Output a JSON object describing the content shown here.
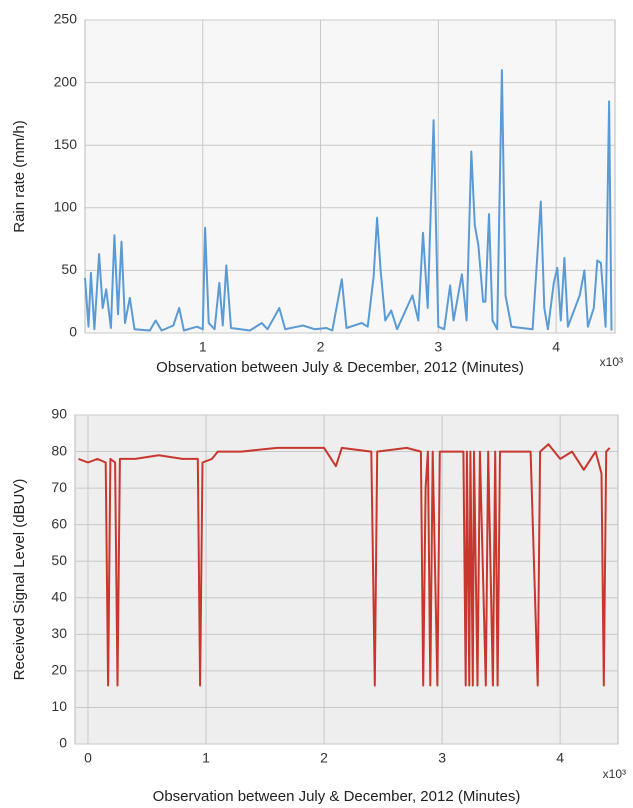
{
  "chart_data": [
    {
      "type": "line",
      "x_label": "Observation between July & December, 2012 (Minutes)",
      "x_multiplier": "x10³",
      "y_label": "Rain rate (mm/h)",
      "color": "#5b9bd5",
      "grid": true,
      "background": "#f7f7f7",
      "xlim": [
        0,
        4.5
      ],
      "xticks": [
        1,
        2,
        3,
        4
      ],
      "ylim": [
        0,
        250
      ],
      "yticks": [
        0,
        50,
        100,
        150,
        200,
        250
      ],
      "x": [
        0,
        0.03,
        0.05,
        0.08,
        0.12,
        0.15,
        0.18,
        0.22,
        0.25,
        0.28,
        0.31,
        0.34,
        0.38,
        0.42,
        0.55,
        0.6,
        0.65,
        0.75,
        0.8,
        0.84,
        0.95,
        1.0,
        1.02,
        1.05,
        1.1,
        1.14,
        1.17,
        1.2,
        1.24,
        1.4,
        1.5,
        1.55,
        1.65,
        1.7,
        1.85,
        1.95,
        2.05,
        2.1,
        2.18,
        2.22,
        2.35,
        2.4,
        2.45,
        2.48,
        2.51,
        2.55,
        2.6,
        2.65,
        2.78,
        2.83,
        2.87,
        2.91,
        2.96,
        3.0,
        3.05,
        3.1,
        3.13,
        3.2,
        3.24,
        3.28,
        3.31,
        3.34,
        3.38,
        3.4,
        3.43,
        3.46,
        3.5,
        3.54,
        3.57,
        3.62,
        3.8,
        3.87,
        3.9,
        3.93,
        3.98,
        4.01,
        4.04,
        4.07,
        4.1,
        4.2,
        4.24,
        4.27,
        4.32,
        4.35,
        4.38,
        4.42,
        4.45,
        4.47
      ],
      "values": [
        44,
        5,
        48,
        3,
        63,
        20,
        35,
        4,
        78,
        15,
        73,
        8,
        28,
        3,
        2,
        10,
        2,
        6,
        20,
        2,
        5,
        3,
        84,
        8,
        3,
        40,
        6,
        54,
        4,
        2,
        8,
        3,
        20,
        3,
        6,
        3,
        4,
        2,
        43,
        4,
        8,
        5,
        45,
        92,
        50,
        10,
        18,
        3,
        30,
        10,
        80,
        20,
        170,
        5,
        3,
        38,
        10,
        47,
        10,
        145,
        86,
        70,
        25,
        25,
        95,
        10,
        3,
        210,
        30,
        5,
        3,
        105,
        20,
        3,
        40,
        52,
        10,
        60,
        5,
        30,
        50,
        5,
        20,
        58,
        56,
        5,
        185,
        2
      ]
    },
    {
      "type": "line",
      "x_label": "Observation between July & December, 2012 (Minutes)",
      "x_multiplier": "x10³",
      "y_label": "Received Signal Level (dBUV)",
      "color": "#c8372d",
      "grid": true,
      "background": "#eeeeee",
      "xlim": [
        -0.11,
        4.49
      ],
      "xticks": [
        0,
        1,
        2,
        3,
        4
      ],
      "ylim": [
        0,
        90
      ],
      "yticks": [
        0,
        10,
        20,
        30,
        40,
        50,
        60,
        70,
        80,
        90
      ],
      "x": [
        -0.08,
        0,
        0.08,
        0.15,
        0.17,
        0.19,
        0.23,
        0.25,
        0.27,
        0.4,
        0.6,
        0.8,
        0.93,
        0.95,
        0.97,
        1.05,
        1.1,
        1.3,
        1.6,
        2.0,
        2.1,
        2.15,
        2.4,
        2.43,
        2.45,
        2.7,
        2.82,
        2.84,
        2.86,
        2.88,
        2.9,
        2.92,
        2.96,
        2.98,
        3.1,
        3.18,
        3.2,
        3.21,
        3.23,
        3.24,
        3.26,
        3.27,
        3.3,
        3.32,
        3.37,
        3.39,
        3.43,
        3.45,
        3.47,
        3.49,
        3.6,
        3.75,
        3.81,
        3.83,
        3.9,
        4.0,
        4.1,
        4.2,
        4.3,
        4.35,
        4.37,
        4.39,
        4.42
      ],
      "values": [
        78,
        77,
        78,
        77,
        16,
        78,
        77,
        16,
        78,
        78,
        79,
        78,
        78,
        16,
        77,
        78,
        80,
        80,
        81,
        81,
        76,
        81,
        80,
        16,
        80,
        81,
        80,
        16,
        70,
        80,
        16,
        80,
        16,
        80,
        80,
        80,
        16,
        80,
        16,
        80,
        16,
        80,
        16,
        80,
        16,
        80,
        16,
        80,
        16,
        80,
        80,
        80,
        16,
        80,
        82,
        78,
        80,
        75,
        80,
        74,
        16,
        80,
        81
      ]
    }
  ]
}
